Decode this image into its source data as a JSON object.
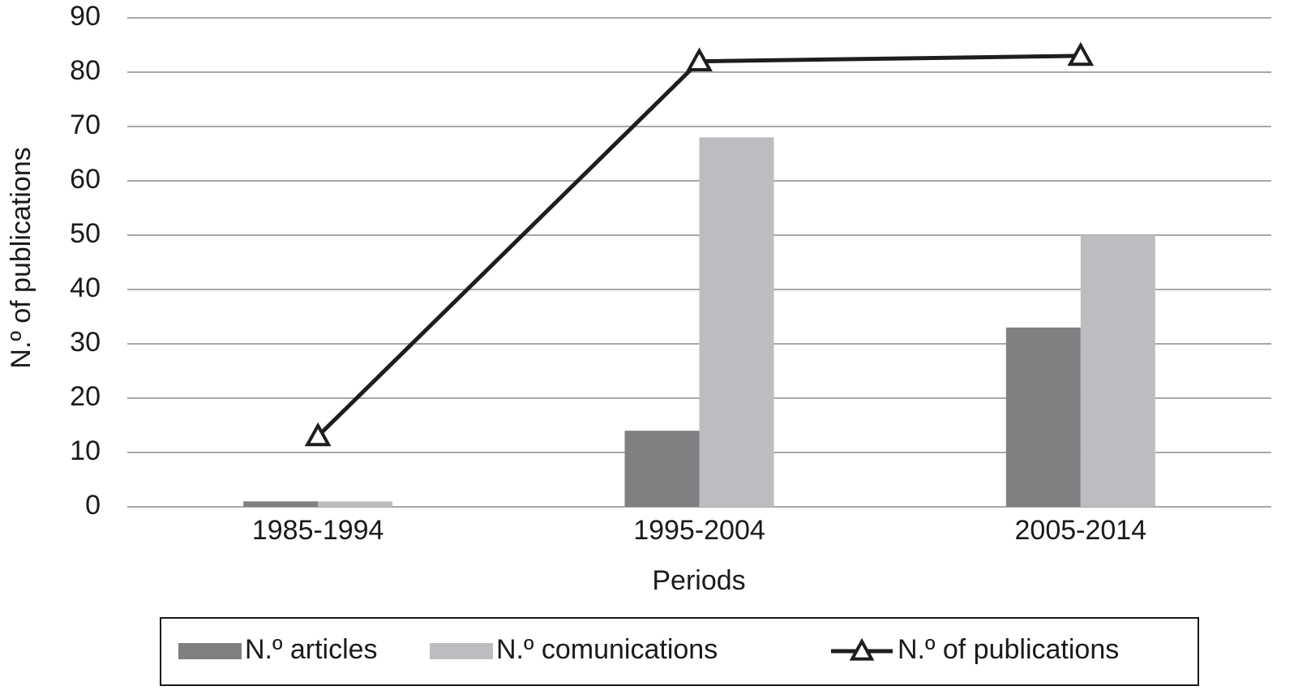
{
  "chart_data": {
    "type": "bar",
    "x_label": "Periods",
    "y_label": "N.º of publications",
    "categories": [
      "1985-1994",
      "1995-2004",
      "2005-2014"
    ],
    "series": [
      {
        "name": "N.º articles",
        "color": "#808083",
        "values": [
          1,
          14,
          33
        ]
      },
      {
        "name": "N.º comunications",
        "color": "#bcbdc0",
        "values": [
          1,
          68,
          50
        ]
      },
      {
        "name": "N.º of publications",
        "color": "#1e1e1e",
        "type": "line",
        "marker": "triangle",
        "values": [
          13,
          82,
          83
        ]
      }
    ],
    "ylim": [
      0,
      90
    ],
    "yticks": [
      0,
      10,
      20,
      30,
      40,
      50,
      60,
      70,
      80,
      90
    ],
    "grid": true,
    "legend": "bottom"
  }
}
